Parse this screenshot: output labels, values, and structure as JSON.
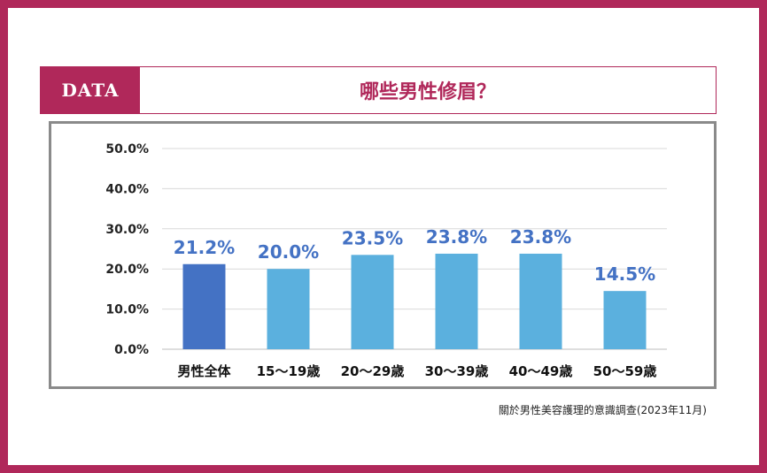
{
  "header": {
    "tag": "DATA",
    "title": "哪些男性修眉？"
  },
  "source": "關於男性美容護理的意識調查(2023年11月)",
  "colors": {
    "frame": "#b0285a",
    "bar_highlight": "#4472c4",
    "bar": "#5bb0de",
    "label": "#4472c4"
  },
  "chart_data": {
    "type": "bar",
    "categories": [
      "男性全体",
      "15～19歳",
      "20～29歳",
      "30～39歳",
      "40～49歳",
      "50～59歳"
    ],
    "values": [
      21.2,
      20.0,
      23.5,
      23.8,
      23.8,
      14.5
    ],
    "data_labels": [
      "21.2%",
      "20.0%",
      "23.5%",
      "23.8%",
      "23.8%",
      "14.5%"
    ],
    "y_ticks": [
      "0.0%",
      "10.0%",
      "20.0%",
      "30.0%",
      "40.0%",
      "50.0%"
    ],
    "ylim": [
      0,
      50
    ],
    "grid": true,
    "highlight_index": 0
  }
}
